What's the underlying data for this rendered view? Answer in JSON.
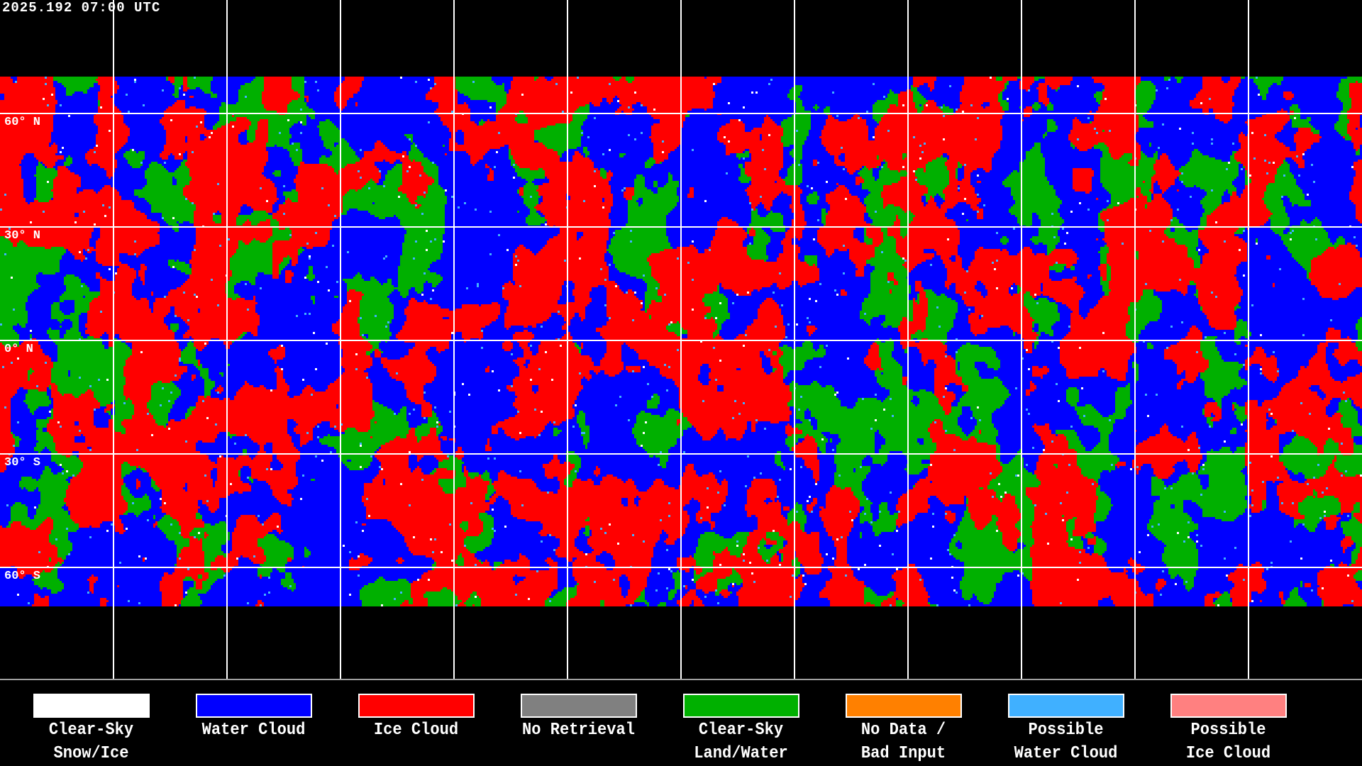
{
  "timestamp": "2025.192 07:00 UTC",
  "latitude_labels": [
    "60° N",
    "30° N",
    "0° N",
    "30° S",
    "60° S"
  ],
  "legend": [
    {
      "line1": "Clear-Sky",
      "line2": "Snow/Ice",
      "color": "#ffffff"
    },
    {
      "line1": "Water Cloud",
      "line2": "",
      "color": "#0000ff"
    },
    {
      "line1": "Ice Cloud",
      "line2": "",
      "color": "#ff0000"
    },
    {
      "line1": "No Retrieval",
      "line2": "",
      "color": "#808080"
    },
    {
      "line1": "Clear-Sky",
      "line2": "Land/Water",
      "color": "#00b000"
    },
    {
      "line1": "No Data /",
      "line2": "Bad Input",
      "color": "#ff8000"
    },
    {
      "line1": "Possible",
      "line2": "Water Cloud",
      "color": "#40b0ff"
    },
    {
      "line1": "Possible",
      "line2": "Ice Cloud",
      "color": "#ff8080"
    }
  ]
}
